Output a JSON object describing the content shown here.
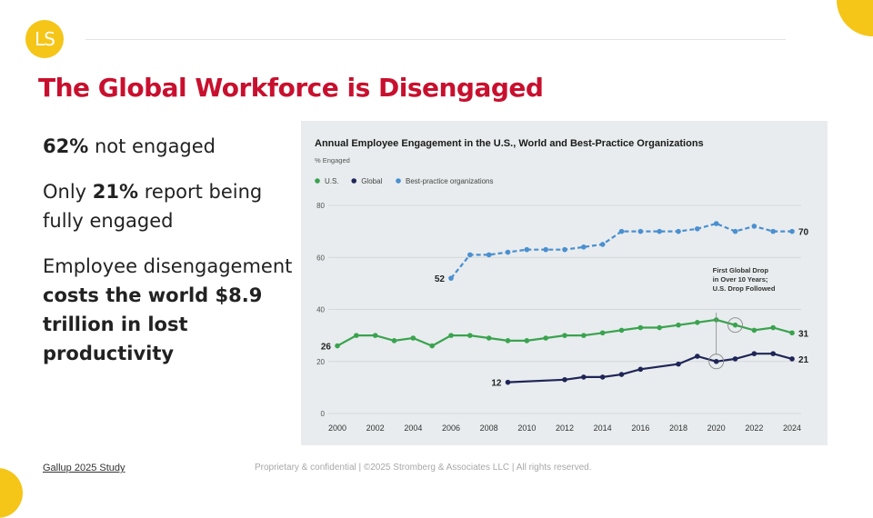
{
  "slide": {
    "logo_text": "LS",
    "title": "The Global Workforce is Disengaged",
    "points": [
      {
        "bold": "62%",
        "text": " not engaged"
      },
      {
        "pre": "Only ",
        "bold": "21%",
        "text": " report being fully engaged"
      },
      {
        "pre": "Employee disengagement ",
        "bold": "costs the world $8.9 trillion in lost productivity"
      }
    ],
    "source": "Gallup 2025 Study",
    "footer": "Proprietary & confidential  |  ©2025 Stromberg & Associates LLC | All rights reserved."
  },
  "chart_data": {
    "type": "line",
    "title": "Annual Employee Engagement in the U.S., World and Best-Practice Organizations",
    "ylabel": "% Engaged",
    "ylim": [
      0,
      80
    ],
    "yticks": [
      0,
      20,
      40,
      60,
      80
    ],
    "xlim": [
      2000,
      2024
    ],
    "xticks": [
      2000,
      2002,
      2004,
      2006,
      2008,
      2010,
      2012,
      2014,
      2016,
      2018,
      2020,
      2022,
      2024
    ],
    "legend_position": "top-left",
    "grid": "horizontal",
    "series": [
      {
        "name": "U.S.",
        "color": "#3aa34f",
        "dashed": false,
        "x": [
          2000,
          2001,
          2002,
          2003,
          2004,
          2005,
          2006,
          2007,
          2008,
          2009,
          2010,
          2011,
          2012,
          2013,
          2014,
          2015,
          2016,
          2017,
          2018,
          2019,
          2020,
          2021,
          2022,
          2023,
          2024
        ],
        "y": [
          26,
          30,
          30,
          28,
          29,
          26,
          30,
          30,
          29,
          28,
          28,
          29,
          30,
          30,
          31,
          32,
          33,
          33,
          34,
          35,
          36,
          34,
          32,
          33,
          31
        ]
      },
      {
        "name": "Global",
        "color": "#1f2557",
        "dashed": false,
        "x": [
          2009,
          2012,
          2013,
          2014,
          2015,
          2016,
          2018,
          2019,
          2020,
          2021,
          2022,
          2023,
          2024
        ],
        "y": [
          12,
          13,
          14,
          14,
          15,
          17,
          19,
          22,
          20,
          21,
          23,
          23,
          21
        ]
      },
      {
        "name": "Best-practice organizations",
        "color": "#4a8fd0",
        "dashed": true,
        "x": [
          2006,
          2007,
          2008,
          2009,
          2010,
          2011,
          2012,
          2013,
          2014,
          2015,
          2016,
          2017,
          2018,
          2019,
          2020,
          2021,
          2022,
          2023,
          2024
        ],
        "y": [
          52,
          61,
          61,
          62,
          63,
          63,
          63,
          64,
          65,
          70,
          70,
          70,
          70,
          71,
          73,
          70,
          72,
          70,
          70
        ]
      }
    ],
    "value_labels": [
      {
        "series": "Best-practice organizations",
        "x": 2006,
        "text": "52",
        "side": "left"
      },
      {
        "series": "Best-practice organizations",
        "x": 2024,
        "text": "70",
        "side": "right"
      },
      {
        "series": "U.S.",
        "x": 2000,
        "text": "26",
        "side": "left"
      },
      {
        "series": "U.S.",
        "x": 2024,
        "text": "31",
        "side": "right"
      },
      {
        "series": "Global",
        "x": 2009,
        "text": "12",
        "side": "left"
      },
      {
        "series": "Global",
        "x": 2024,
        "text": "21",
        "side": "right"
      }
    ],
    "annotation": {
      "lines": [
        "First Global Drop",
        "in Over 10 Years;",
        "U.S. Drop Followed"
      ],
      "circles": [
        {
          "series": "Global",
          "x": 2020
        },
        {
          "series": "U.S.",
          "x": 2021
        }
      ]
    }
  }
}
